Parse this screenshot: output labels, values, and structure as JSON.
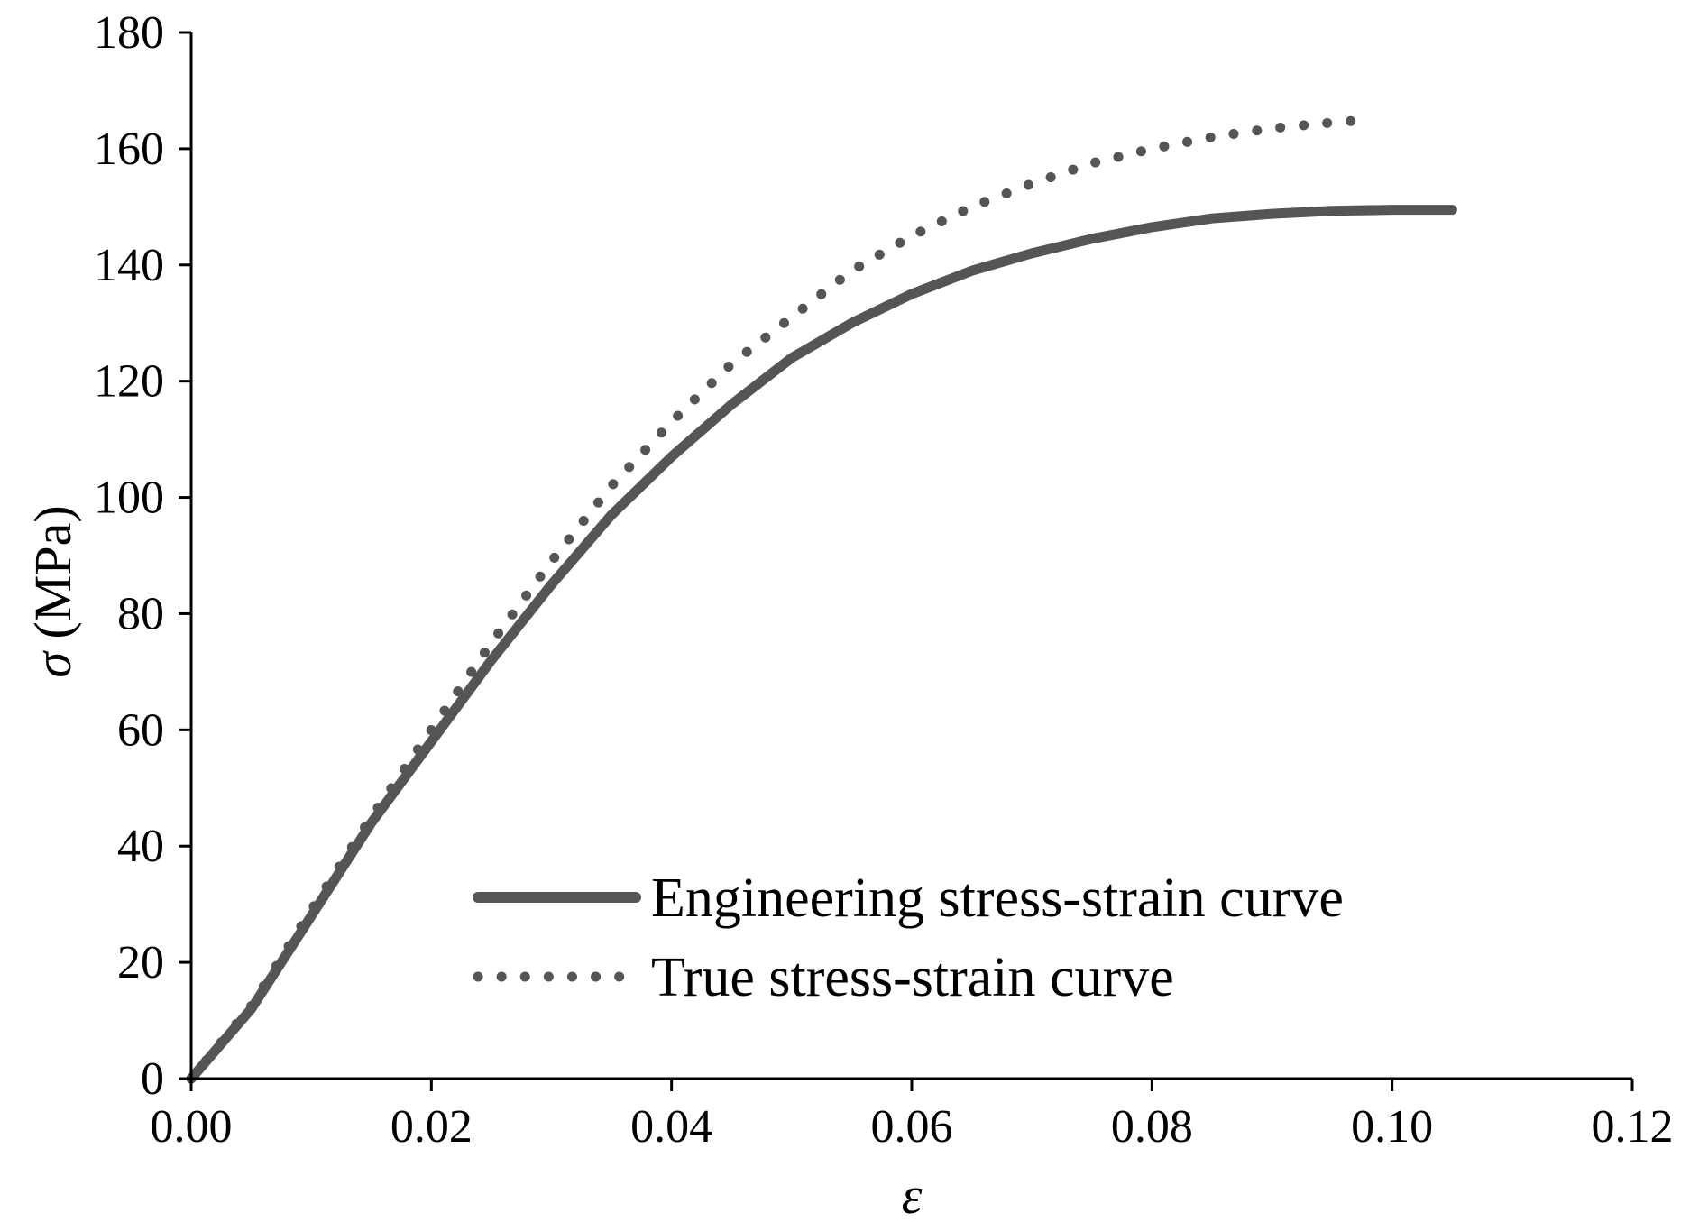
{
  "chart_data": {
    "type": "line",
    "title": "",
    "xlabel": "ε",
    "ylabel_symbol": "σ",
    "ylabel_unit": "(MPa)",
    "xlim": [
      0,
      0.12
    ],
    "ylim": [
      0,
      180
    ],
    "x_ticks": [
      0,
      0.02,
      0.04,
      0.06,
      0.08,
      0.1,
      0.12
    ],
    "x_tick_labels": [
      "0.00",
      "0.02",
      "0.04",
      "0.06",
      "0.08",
      "0.10",
      "0.12"
    ],
    "y_ticks": [
      0,
      20,
      40,
      60,
      80,
      100,
      120,
      140,
      160,
      180
    ],
    "y_tick_labels": [
      "0",
      "20",
      "40",
      "60",
      "80",
      "100",
      "120",
      "140",
      "160",
      "180"
    ],
    "grid": false,
    "legend_position": "bottom-center",
    "series_color": "#555555",
    "series": [
      {
        "name": "Engineering stress-strain curve",
        "style": "solid",
        "x": [
          0,
          0.005,
          0.01,
          0.015,
          0.02,
          0.025,
          0.03,
          0.035,
          0.04,
          0.045,
          0.05,
          0.055,
          0.06,
          0.065,
          0.07,
          0.075,
          0.08,
          0.085,
          0.09,
          0.095,
          0.1,
          0.105
        ],
        "y": [
          0,
          12,
          28,
          44,
          58,
          72,
          85,
          97,
          107,
          116,
          124,
          130,
          135,
          139,
          142,
          144.5,
          146.5,
          148,
          148.8,
          149.3,
          149.5,
          149.5
        ]
      },
      {
        "name": "True stress-strain curve",
        "style": "dotted",
        "x": [
          0,
          0.005,
          0.01,
          0.015,
          0.02,
          0.025,
          0.03,
          0.035,
          0.04,
          0.045,
          0.05,
          0.055,
          0.06,
          0.065,
          0.07,
          0.075,
          0.08,
          0.085,
          0.09,
          0.095,
          0.098
        ],
        "y": [
          0,
          12.5,
          29,
          45,
          60,
          75,
          89,
          102,
          113,
          123,
          131,
          139,
          145,
          150,
          154,
          157.5,
          160,
          162,
          163.5,
          164.5,
          165
        ]
      }
    ]
  }
}
